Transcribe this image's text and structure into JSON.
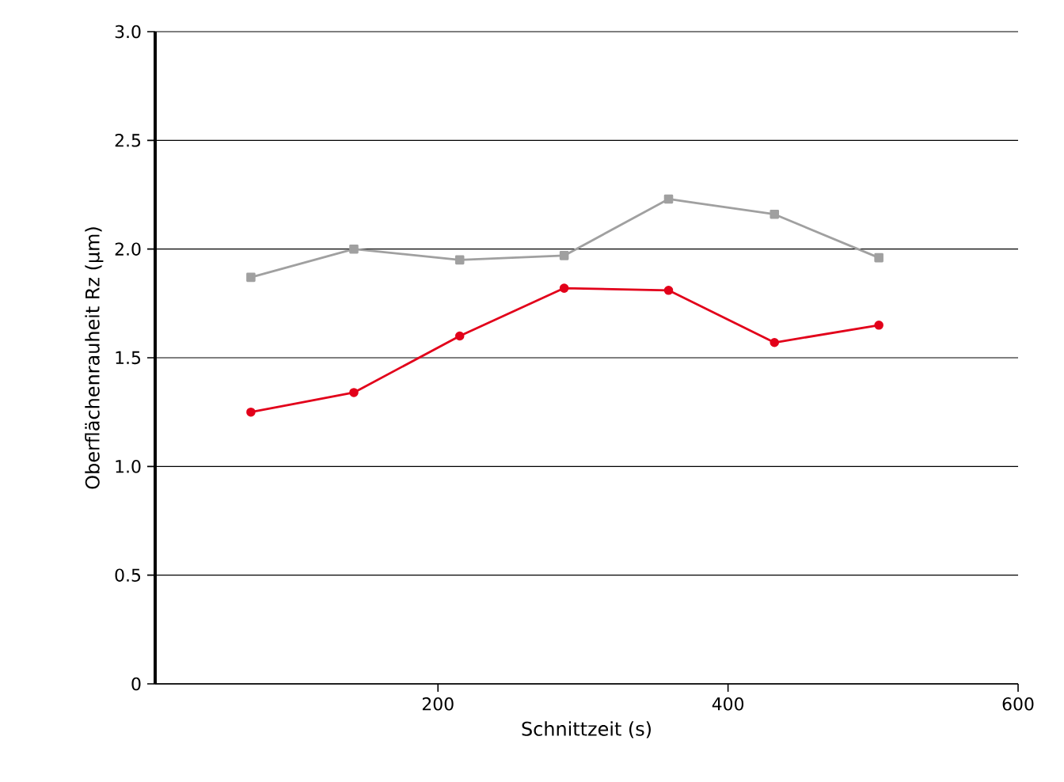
{
  "chart_data": {
    "type": "line",
    "xlabel": "Schnittzeit (s)",
    "ylabel": "Oberflächenrauheit Rz (µm)",
    "xlim": [
      5,
      600
    ],
    "xticks": [
      200,
      400,
      600
    ],
    "ylim": [
      0,
      3
    ],
    "yticks": [
      0,
      0.5,
      {
        "value": 1,
        "label": "1.0"
      },
      1.5,
      {
        "value": 2,
        "label": "2.0"
      },
      2.5,
      {
        "value": 3,
        "label": "3.0"
      }
    ],
    "grid": "y",
    "line_style": "solid",
    "series": [
      {
        "color": "#a0a0a0",
        "marker": "square",
        "x": [
          71,
          142,
          215,
          287,
          359,
          432,
          504
        ],
        "values": [
          1.87,
          2.0,
          1.95,
          1.97,
          2.23,
          2.16,
          1.96
        ]
      },
      {
        "color": "#e2001a",
        "marker": "circle",
        "x": [
          71,
          142,
          215,
          287,
          359,
          432,
          504
        ],
        "values": [
          1.25,
          1.34,
          1.6,
          1.82,
          1.81,
          1.57,
          1.65
        ]
      }
    ]
  }
}
